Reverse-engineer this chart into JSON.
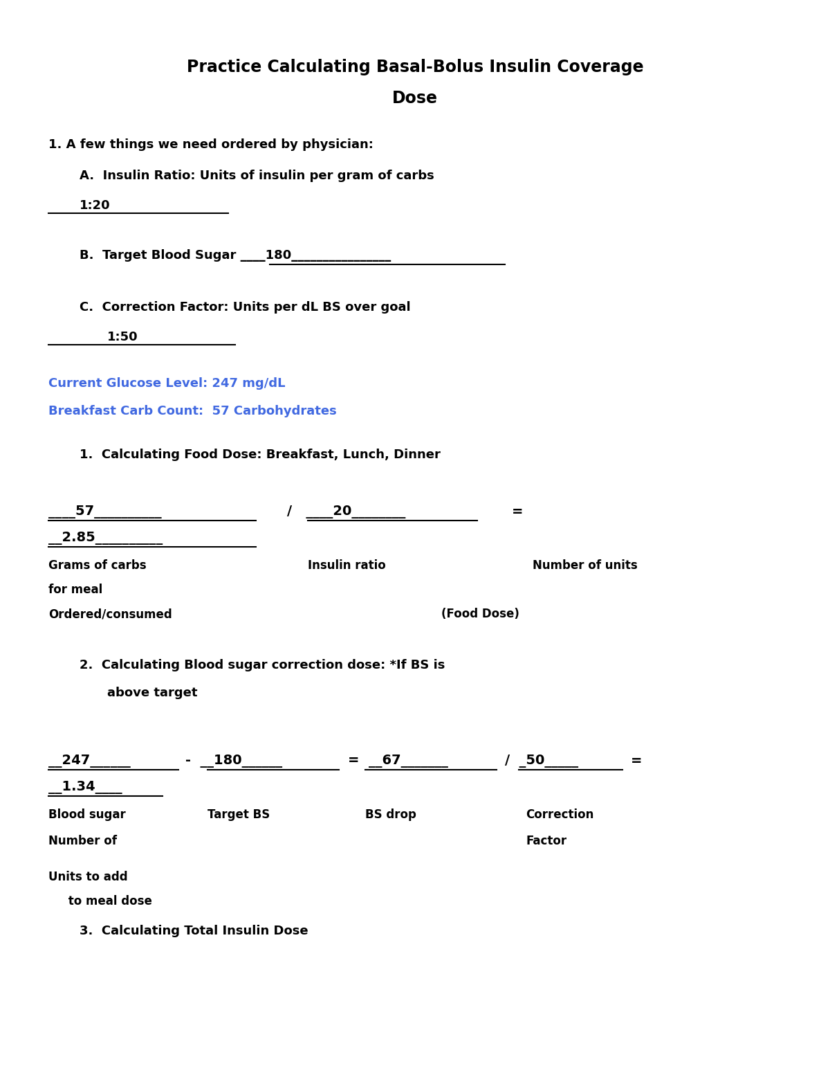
{
  "bg_color": "#ffffff",
  "black": "#000000",
  "blue": "#4169E1",
  "title_line1": "Practice Calculating Basal-Bolus Insulin Coverage",
  "title_line2": "Dose",
  "s1_header": "1. A few things we need ordered by physician:",
  "s1A": "A.  Insulin Ratio: Units of insulin per gram of carbs",
  "s1A_val": "1:20",
  "s1B": "B.  Target Blood Sugar ____180________________",
  "s1C": "C.  Correction Factor: Units per dL BS over goal",
  "s1C_val": "1:50",
  "glucose1": "Current Glucose Level: 247 mg/dL",
  "glucose2": "Breakfast Carb Count:  57 Carbohydrates",
  "sub1": "1.  Calculating Food Dose: Breakfast, Lunch, Dinner",
  "f1_num": "____57__________",
  "f1_div": "/   ____20________",
  "f1_eq": "=",
  "f1_res": "__2.85__________",
  "l1_left1": "Grams of carbs",
  "l1_left2": "for meal",
  "l1_left3": "Ordered/consumed",
  "l1_mid": "Insulin ratio",
  "l1_right": "Number of units",
  "l1_right2": "(Food Dose)",
  "sub2a": "2.  Calculating Blood sugar correction dose: *If BS is",
  "sub2b": "above target",
  "f2": "__247______  -  __180______  =  __67_______  /  _50_____  =",
  "f2_res": "__1.34____",
  "l2_left1": "Blood sugar",
  "l2_left2": "Number of",
  "l2_mid1": "Target BS",
  "l2_mid2": "BS drop",
  "l2_right1": "Correction",
  "l2_right2": "Factor",
  "l2_bot1": "Units to add",
  "l2_bot2": "     to meal dose",
  "sub3": "3.  Calculating Total Insulin Dose",
  "title_fs": 17,
  "body_fs": 13,
  "formula_fs": 14,
  "label_fs": 12
}
